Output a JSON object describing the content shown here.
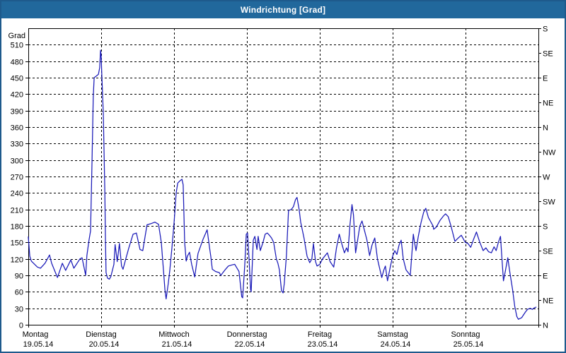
{
  "window": {
    "title": "Windrichtung [Grad]"
  },
  "colors": {
    "titlebar_bg": "#21689c",
    "frame": "#1e5a8c",
    "series_line": "#1a1ab8",
    "grid": "#000000",
    "text": "#000000",
    "plot_bg": "#ffffff"
  },
  "chart_data": {
    "type": "line",
    "title": "Windrichtung [Grad]",
    "ylabel": "Grad",
    "ylim": [
      0,
      540
    ],
    "y_tick_step": 30,
    "y_tick_labels": [
      "0",
      "30",
      "60",
      "90",
      "120",
      "150",
      "180",
      "210",
      "240",
      "270",
      "300",
      "330",
      "360",
      "390",
      "420",
      "450",
      "480",
      "510"
    ],
    "right_axis": {
      "tick_step_deg": 45,
      "labels_bottom_to_top": [
        "N",
        "NE",
        "E",
        "SE",
        "S",
        "SW",
        "W",
        "NW",
        "N",
        "NE",
        "E",
        "SE",
        "S"
      ]
    },
    "grid": "dashed",
    "legend": "none",
    "x_days": [
      {
        "weekday": "Montag",
        "date": "19.05.14"
      },
      {
        "weekday": "Dienstag",
        "date": "20.05.14"
      },
      {
        "weekday": "Mittwoch",
        "date": "21.05.14"
      },
      {
        "weekday": "Donnerstag",
        "date": "22.05.14"
      },
      {
        "weekday": "Freitag",
        "date": "23.05.14"
      },
      {
        "weekday": "Samstag",
        "date": "24.05.14"
      },
      {
        "weekday": "Sonntag",
        "date": "25.05.14"
      }
    ],
    "hours_per_day": 24,
    "x_total_hours": 168,
    "series": [
      {
        "name": "Windrichtung",
        "color": "#1a1ab8",
        "points": [
          [
            0,
            160
          ],
          [
            0.5,
            125
          ],
          [
            1,
            116
          ],
          [
            3,
            105
          ],
          [
            4,
            103
          ],
          [
            5.5,
            112
          ],
          [
            7,
            127
          ],
          [
            7.7,
            112
          ],
          [
            9.6,
            86
          ],
          [
            11.2,
            112
          ],
          [
            12.3,
            99
          ],
          [
            14,
            118
          ],
          [
            15,
            103
          ],
          [
            17,
            120
          ],
          [
            17.7,
            122
          ],
          [
            18.9,
            90
          ],
          [
            19.3,
            126
          ],
          [
            20,
            154
          ],
          [
            20.5,
            171
          ],
          [
            21,
            300
          ],
          [
            21.2,
            360
          ],
          [
            21.4,
            415
          ],
          [
            21.7,
            450
          ],
          [
            22.4,
            453
          ],
          [
            23.1,
            456
          ],
          [
            23.5,
            468
          ],
          [
            23.8,
            500
          ],
          [
            24,
            490
          ],
          [
            24.2,
            455
          ],
          [
            24.7,
            385
          ],
          [
            25,
            300
          ],
          [
            25.2,
            240
          ],
          [
            25.4,
            160
          ],
          [
            25.6,
            95
          ],
          [
            26.1,
            85
          ],
          [
            26.7,
            83
          ],
          [
            27.2,
            88
          ],
          [
            28.2,
            110
          ],
          [
            28.6,
            146
          ],
          [
            29.3,
            115
          ],
          [
            30,
            148
          ],
          [
            30.7,
            107
          ],
          [
            31.2,
            101
          ],
          [
            32.1,
            120
          ],
          [
            33.1,
            140
          ],
          [
            34.5,
            165
          ],
          [
            35.6,
            167
          ],
          [
            36.8,
            137
          ],
          [
            37.7,
            135
          ],
          [
            39.1,
            182
          ],
          [
            40.3,
            184
          ],
          [
            41.7,
            187
          ],
          [
            42.9,
            183
          ],
          [
            43.8,
            150
          ],
          [
            44.5,
            100
          ],
          [
            45,
            64
          ],
          [
            45.4,
            47
          ],
          [
            46.1,
            75
          ],
          [
            46.6,
            99
          ],
          [
            47.3,
            140
          ],
          [
            48,
            185
          ],
          [
            48.7,
            240
          ],
          [
            49.2,
            258
          ],
          [
            49.9,
            262
          ],
          [
            50.6,
            265
          ],
          [
            51,
            255
          ],
          [
            51.5,
            150
          ],
          [
            52,
            116
          ],
          [
            52.4,
            125
          ],
          [
            53.1,
            132
          ],
          [
            53.8,
            110
          ],
          [
            54.8,
            87
          ],
          [
            55.9,
            130
          ],
          [
            57.5,
            155
          ],
          [
            58.9,
            173
          ],
          [
            59.7,
            140
          ],
          [
            60.1,
            125
          ],
          [
            60.6,
            101
          ],
          [
            61.7,
            97
          ],
          [
            62.9,
            95
          ],
          [
            63.4,
            90
          ],
          [
            64.8,
            100
          ],
          [
            65.9,
            107
          ],
          [
            67.1,
            109
          ],
          [
            68,
            110
          ],
          [
            69.4,
            97
          ],
          [
            70.3,
            51
          ],
          [
            70.6,
            49
          ],
          [
            71.3,
            110
          ],
          [
            71.8,
            165
          ],
          [
            72.2,
            167
          ],
          [
            72.7,
            120
          ],
          [
            73.2,
            64
          ],
          [
            73.4,
            60
          ],
          [
            74.1,
            154
          ],
          [
            74.6,
            161
          ],
          [
            75.3,
            137
          ],
          [
            75.7,
            161
          ],
          [
            76.4,
            135
          ],
          [
            77.3,
            150
          ],
          [
            78,
            165
          ],
          [
            78.7,
            167
          ],
          [
            79.4,
            163
          ],
          [
            80.1,
            158
          ],
          [
            80.8,
            150
          ],
          [
            81.7,
            120
          ],
          [
            82.2,
            112
          ],
          [
            82.7,
            100
          ],
          [
            83.4,
            62
          ],
          [
            83.9,
            58
          ],
          [
            84.3,
            75
          ],
          [
            85,
            125
          ],
          [
            85.7,
            208
          ],
          [
            86.6,
            210
          ],
          [
            87.3,
            215
          ],
          [
            88,
            228
          ],
          [
            88.5,
            232
          ],
          [
            89.2,
            210
          ],
          [
            89.7,
            187
          ],
          [
            90.8,
            158
          ],
          [
            91.8,
            125
          ],
          [
            92.7,
            113
          ],
          [
            93.4,
            120
          ],
          [
            93.9,
            148
          ],
          [
            94.6,
            115
          ],
          [
            95.1,
            107
          ],
          [
            96,
            110
          ],
          [
            96.9,
            120
          ],
          [
            98.5,
            131
          ],
          [
            99.4,
            115
          ],
          [
            100.6,
            105
          ],
          [
            101.5,
            140
          ],
          [
            102.4,
            165
          ],
          [
            103.1,
            150
          ],
          [
            104.1,
            131
          ],
          [
            104.8,
            140
          ],
          [
            105.3,
            133
          ],
          [
            105.9,
            180
          ],
          [
            106.6,
            219
          ],
          [
            107.1,
            200
          ],
          [
            107.8,
            131
          ],
          [
            108.5,
            155
          ],
          [
            109.2,
            180
          ],
          [
            109.9,
            189
          ],
          [
            110.8,
            170
          ],
          [
            111.5,
            155
          ],
          [
            112.4,
            126
          ],
          [
            113.2,
            145
          ],
          [
            114.1,
            158
          ],
          [
            115,
            120
          ],
          [
            116.4,
            86
          ],
          [
            117.1,
            100
          ],
          [
            117.6,
            107
          ],
          [
            118.3,
            80
          ],
          [
            119.2,
            105
          ],
          [
            120,
            125
          ],
          [
            120.7,
            135
          ],
          [
            121.4,
            128
          ],
          [
            122.1,
            145
          ],
          [
            122.8,
            154
          ],
          [
            123.5,
            120
          ],
          [
            124.4,
            100
          ],
          [
            125.8,
            90
          ],
          [
            126.8,
            165
          ],
          [
            127.2,
            150
          ],
          [
            127.7,
            135
          ],
          [
            128.4,
            160
          ],
          [
            129.3,
            185
          ],
          [
            130.2,
            205
          ],
          [
            130.9,
            212
          ],
          [
            131.8,
            195
          ],
          [
            133.3,
            180
          ],
          [
            133.5,
            174
          ],
          [
            134.4,
            178
          ],
          [
            135.6,
            190
          ],
          [
            136.7,
            198
          ],
          [
            137.4,
            202
          ],
          [
            138.3,
            197
          ],
          [
            139.2,
            180
          ],
          [
            140.5,
            152
          ],
          [
            141.6,
            158
          ],
          [
            142.6,
            163
          ],
          [
            143.9,
            150
          ],
          [
            144.8,
            148
          ],
          [
            145.7,
            141
          ],
          [
            146.6,
            155
          ],
          [
            147.6,
            169
          ],
          [
            148.7,
            150
          ],
          [
            149.8,
            135
          ],
          [
            150.7,
            140
          ],
          [
            151.6,
            133
          ],
          [
            152.5,
            131
          ],
          [
            153.4,
            142
          ],
          [
            154.1,
            135
          ],
          [
            154.8,
            150
          ],
          [
            155.5,
            161
          ],
          [
            156,
            120
          ],
          [
            156.5,
            80
          ],
          [
            157.2,
            100
          ],
          [
            157.9,
            122
          ],
          [
            158.6,
            95
          ],
          [
            159.5,
            64
          ],
          [
            160.2,
            34
          ],
          [
            160.9,
            15
          ],
          [
            161.4,
            10
          ],
          [
            162.5,
            13
          ],
          [
            163.7,
            23
          ],
          [
            164.4,
            28
          ],
          [
            165.3,
            30
          ],
          [
            166,
            28
          ],
          [
            166.7,
            31
          ],
          [
            167.2,
            32
          ]
        ]
      }
    ]
  }
}
